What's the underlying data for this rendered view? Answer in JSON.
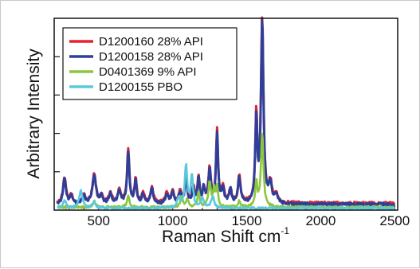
{
  "chart_data": {
    "type": "line",
    "title": "",
    "xlabel": "Raman Shift cm",
    "xlabel_superscript": "-1",
    "ylabel": "Arbitrary Intensity",
    "xlim": [
      200,
      2520
    ],
    "ylim": [
      0,
      1.0
    ],
    "x_ticks": [
      500,
      1000,
      1500,
      2000,
      2500
    ],
    "x_tick_labels": [
      "500",
      "1000",
      "1500",
      "2000",
      "2500"
    ],
    "y_ticks": [
      0.2,
      0.4,
      0.6,
      0.8
    ],
    "grid": false,
    "legend_position": "top-left",
    "series": [
      {
        "name": "D1200160 28% API",
        "color": "#e8232a",
        "baseline": 0.035,
        "noise": 0.008,
        "peaks": [
          [
            270,
            0.13,
            12
          ],
          [
            315,
            0.04,
            10
          ],
          [
            400,
            0.04,
            12
          ],
          [
            470,
            0.15,
            14
          ],
          [
            520,
            0.04,
            10
          ],
          [
            580,
            0.05,
            12
          ],
          [
            640,
            0.07,
            12
          ],
          [
            700,
            0.28,
            9
          ],
          [
            750,
            0.12,
            9
          ],
          [
            800,
            0.05,
            10
          ],
          [
            860,
            0.08,
            12
          ],
          [
            960,
            0.05,
            12
          ],
          [
            1000,
            0.06,
            10
          ],
          [
            1050,
            0.06,
            10
          ],
          [
            1090,
            0.12,
            10
          ],
          [
            1140,
            0.08,
            10
          ],
          [
            1175,
            0.13,
            8
          ],
          [
            1210,
            0.08,
            9
          ],
          [
            1250,
            0.18,
            10
          ],
          [
            1300,
            0.38,
            8
          ],
          [
            1340,
            0.08,
            10
          ],
          [
            1390,
            0.07,
            10
          ],
          [
            1450,
            0.14,
            10
          ],
          [
            1565,
            0.45,
            8
          ],
          [
            1605,
            0.96,
            10
          ],
          [
            1660,
            0.1,
            12
          ],
          [
            1700,
            0.04,
            12
          ]
        ]
      },
      {
        "name": "D1200158 28% API",
        "color": "#2e3f9a",
        "baseline": 0.03,
        "noise": 0.008,
        "peaks": [
          [
            270,
            0.13,
            12
          ],
          [
            315,
            0.04,
            10
          ],
          [
            400,
            0.04,
            12
          ],
          [
            470,
            0.15,
            14
          ],
          [
            520,
            0.04,
            10
          ],
          [
            580,
            0.05,
            12
          ],
          [
            640,
            0.07,
            12
          ],
          [
            700,
            0.27,
            9
          ],
          [
            750,
            0.12,
            9
          ],
          [
            800,
            0.05,
            10
          ],
          [
            860,
            0.08,
            12
          ],
          [
            960,
            0.05,
            12
          ],
          [
            1000,
            0.06,
            10
          ],
          [
            1050,
            0.06,
            10
          ],
          [
            1090,
            0.12,
            10
          ],
          [
            1140,
            0.08,
            10
          ],
          [
            1175,
            0.13,
            8
          ],
          [
            1210,
            0.08,
            9
          ],
          [
            1250,
            0.18,
            10
          ],
          [
            1300,
            0.37,
            8
          ],
          [
            1340,
            0.08,
            10
          ],
          [
            1390,
            0.07,
            10
          ],
          [
            1450,
            0.14,
            10
          ],
          [
            1565,
            0.44,
            8
          ],
          [
            1605,
            0.94,
            10
          ],
          [
            1660,
            0.1,
            12
          ],
          [
            1700,
            0.04,
            12
          ]
        ]
      },
      {
        "name": "D0401369 9% API",
        "color": "#8cc63f",
        "baseline": 0.015,
        "noise": 0.006,
        "peaks": [
          [
            470,
            0.03,
            12
          ],
          [
            700,
            0.06,
            9
          ],
          [
            1060,
            0.05,
            10
          ],
          [
            1100,
            0.04,
            10
          ],
          [
            1175,
            0.08,
            8
          ],
          [
            1250,
            0.13,
            10
          ],
          [
            1280,
            0.09,
            8
          ],
          [
            1300,
            0.1,
            8
          ],
          [
            1450,
            0.03,
            10
          ],
          [
            1565,
            0.13,
            8
          ],
          [
            1605,
            0.38,
            10
          ]
        ]
      },
      {
        "name": "D1200155 PBO",
        "color": "#5bc8dc",
        "baseline": 0.01,
        "noise": 0.005,
        "peaks": [
          [
            270,
            0.04,
            12
          ],
          [
            380,
            0.09,
            14
          ],
          [
            470,
            0.03,
            12
          ],
          [
            1040,
            0.05,
            12
          ],
          [
            1090,
            0.22,
            10
          ],
          [
            1130,
            0.17,
            10
          ],
          [
            1200,
            0.05,
            12
          ],
          [
            1270,
            0.06,
            12
          ]
        ]
      }
    ]
  }
}
